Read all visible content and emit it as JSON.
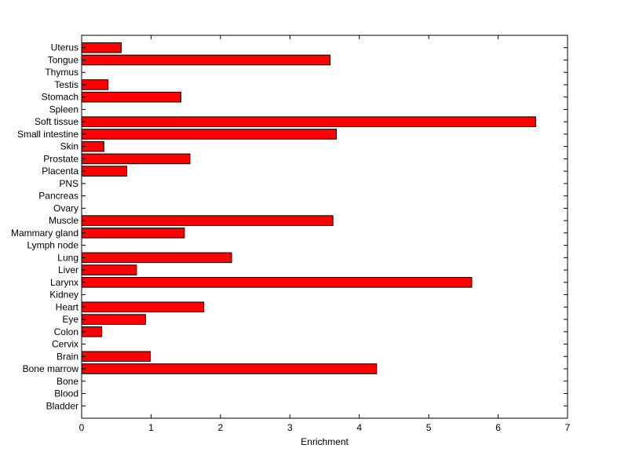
{
  "chart_data": {
    "type": "bar",
    "orientation": "horizontal",
    "title": "",
    "xlabel": "Enrichment",
    "ylabel": "",
    "xlim": [
      0,
      7
    ],
    "xticks": [
      0,
      1,
      2,
      3,
      4,
      5,
      6,
      7
    ],
    "grid": false,
    "legend": "none",
    "bar_color": "#ff0000",
    "categories": [
      "Bladder",
      "Blood",
      "Bone",
      "Bone marrow",
      "Brain",
      "Cervix",
      "Colon",
      "Eye",
      "Heart",
      "Kidney",
      "Larynx",
      "Liver",
      "Lung",
      "Lymph node",
      "Mammary gland",
      "Muscle",
      "Ovary",
      "Pancreas",
      "PNS",
      "Placenta",
      "Prostate",
      "Skin",
      "Small intestine",
      "Soft tissue",
      "Spleen",
      "Stomach",
      "Testis",
      "Thymus",
      "Tongue",
      "Uterus"
    ],
    "values": [
      0,
      0,
      0,
      4.25,
      0.99,
      0,
      0.29,
      0.92,
      1.76,
      0,
      5.62,
      0.79,
      2.16,
      0,
      1.48,
      3.62,
      0,
      0,
      0,
      0.65,
      1.56,
      0.32,
      3.67,
      6.54,
      0,
      1.43,
      0.38,
      0,
      3.58,
      0.57
    ]
  }
}
